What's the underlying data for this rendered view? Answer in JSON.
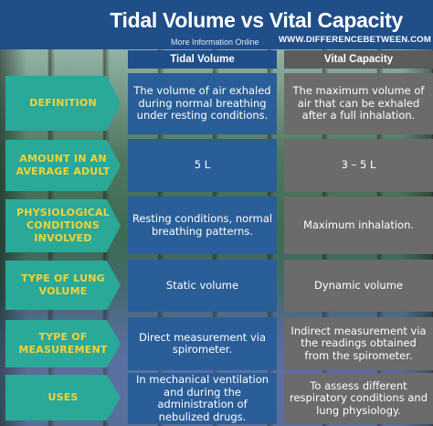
{
  "header": {
    "title": "Tidal Volume vs Vital Capacity",
    "more_info": "More Information  Online",
    "website": "WWW.DIFFERENCEBETWEEN.COM"
  },
  "columns": {
    "tidal": "Tidal Volume",
    "vital": "Vital Capacity"
  },
  "rows": [
    {
      "label": "DEFINITION",
      "tidal": "The volume of air exhaled during normal breathing under resting conditions.",
      "vital": "The maximum volume of air that can be exhaled after a full inhalation."
    },
    {
      "label": "AMOUNT IN AN AVERAGE ADULT",
      "tidal": "5 L",
      "vital": "3 – 5 L"
    },
    {
      "label": "PHYSIOLOGICAL CONDITIONS INVOLVED",
      "tidal": "Resting conditions, normal breathing patterns.",
      "vital": "Maximum inhalation."
    },
    {
      "label": "TYPE OF LUNG VOLUME",
      "tidal": "Static volume",
      "vital": "Dynamic volume"
    },
    {
      "label": "TYPE OF MEASUREMENT",
      "tidal": "Direct measurement via spirometer.",
      "vital": "Indirect measurement via the readings obtained from the spirometer."
    },
    {
      "label": "USES",
      "tidal": "In mechanical ventilation and during the administration of nebulized drugs.",
      "vital": "To assess different respiratory conditions and lung physiology."
    }
  ],
  "colors": {
    "header_bg": "#1f4e89",
    "tidal_bg": "#2a5e99",
    "vital_bg": "#6b6b6b",
    "label_bg": "#2aa898",
    "label_text": "#f2d33a"
  }
}
